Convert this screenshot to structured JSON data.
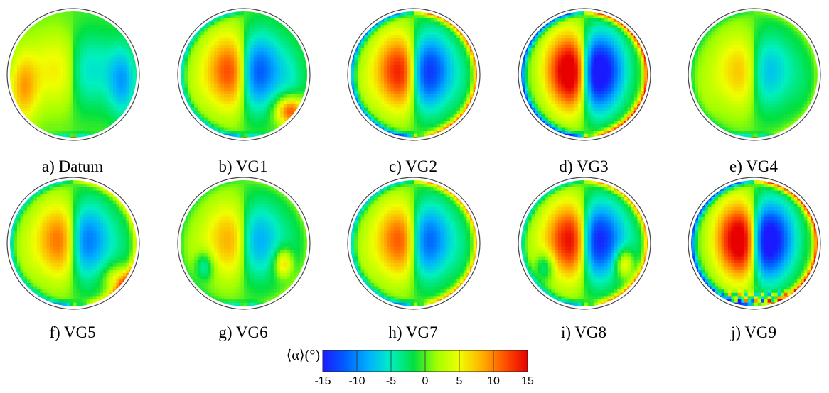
{
  "figure": {
    "panels": [
      {
        "id": "a",
        "label": "a) Datum",
        "pattern": {
          "vortex": 0.25,
          "bright": 0.35,
          "outerBlueRight": 0.55,
          "outerRedLeft": 0.55,
          "rimRed": 0.0,
          "rimBlue": 0.0,
          "bottomBlobs": true
        }
      },
      {
        "id": "b",
        "label": "b) VG1",
        "pattern": {
          "vortex": 0.75,
          "bright": 0.55,
          "outerBlueRight": 0.2,
          "outerRedLeft": 0.1,
          "rimRed": 0.0,
          "rimBlue": 0.65,
          "lowerRightRed": 0.9,
          "bottomBlobs": true
        }
      },
      {
        "id": "c",
        "label": "c) VG2",
        "pattern": {
          "vortex": 0.9,
          "bright": 0.6,
          "outerBlueRight": 0.1,
          "outerRedLeft": 0.1,
          "rimRed": 1.0,
          "rimBlue": 1.0,
          "bottomBlobs": true
        }
      },
      {
        "id": "d",
        "label": "d) VG3",
        "pattern": {
          "vortex": 1.25,
          "bright": 0.7,
          "outerBlueRight": 0.0,
          "outerRedLeft": 0.0,
          "rimRed": 1.2,
          "rimBlue": 1.2,
          "bottomBlobs": true
        }
      },
      {
        "id": "e",
        "label": "e) VG4",
        "pattern": {
          "vortex": 0.45,
          "bright": 0.35,
          "outerBlueRight": 0.1,
          "outerRedLeft": 0.1,
          "rimRed": 0.2,
          "rimBlue": 0.2,
          "bottomBlobs": true
        }
      },
      {
        "id": "f",
        "label": "f) VG5",
        "pattern": {
          "vortex": 0.7,
          "bright": 0.45,
          "outerBlueRight": 0.1,
          "outerRedLeft": 0.1,
          "rimRed": 0.55,
          "rimBlue": 0.6,
          "lowerRightRed": 0.5,
          "bottomBlobs": true
        }
      },
      {
        "id": "g",
        "label": "g) VG6",
        "pattern": {
          "vortex": 0.5,
          "bright": 0.4,
          "outerBlueRight": 0.1,
          "outerRedLeft": 0.1,
          "rimRed": 0.15,
          "rimBlue": 0.15,
          "sideLobes": true,
          "bottomBlobs": true
        }
      },
      {
        "id": "h",
        "label": "h) VG7",
        "pattern": {
          "vortex": 0.75,
          "bright": 0.5,
          "outerBlueRight": 0.1,
          "outerRedLeft": 0.1,
          "rimRed": 0.85,
          "rimBlue": 0.7,
          "bottomBlobs": true
        }
      },
      {
        "id": "i",
        "label": "i) VG8",
        "pattern": {
          "vortex": 0.95,
          "bright": 0.65,
          "outerBlueRight": 0.1,
          "outerRedLeft": 0.1,
          "rimRed": 0.9,
          "rimBlue": 0.6,
          "sideLobes": true,
          "bottomBlobs": true
        }
      },
      {
        "id": "j",
        "label": "j) VG9",
        "pattern": {
          "vortex": 1.2,
          "bright": 0.7,
          "outerBlueRight": 0.0,
          "outerRedLeft": 0.0,
          "rimRed": 1.2,
          "rimBlue": 1.2,
          "bottomBlobs": true,
          "bottomNoise": true
        }
      }
    ],
    "colorbar": {
      "title": "⟨α⟩(°)",
      "min": -15,
      "max": 15,
      "ticks": [
        "-15",
        "-10",
        "-5",
        "0",
        "5",
        "10",
        "15"
      ],
      "colors": [
        "#1a1aff",
        "#0060ff",
        "#00b0ff",
        "#00f0c0",
        "#00e040",
        "#a0ff00",
        "#f0ff00",
        "#ffb000",
        "#ff5000",
        "#e80000"
      ]
    }
  }
}
